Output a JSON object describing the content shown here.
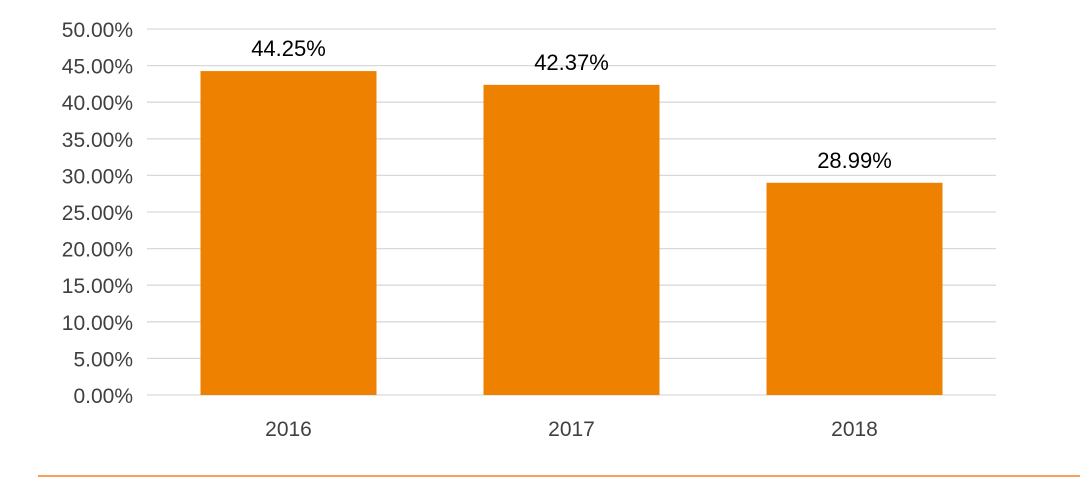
{
  "chart_data": {
    "type": "bar",
    "categories": [
      "2016",
      "2017",
      "2018"
    ],
    "values": [
      44.25,
      42.37,
      28.99
    ],
    "value_labels": [
      "44.25%",
      "42.37%",
      "28.99%"
    ],
    "y_ticks": [
      0,
      5,
      10,
      15,
      20,
      25,
      30,
      35,
      40,
      45,
      50
    ],
    "y_tick_labels": [
      "0.00%",
      "5.00%",
      "10.00%",
      "15.00%",
      "20.00%",
      "25.00%",
      "30.00%",
      "35.00%",
      "40.00%",
      "45.00%",
      "50.00%"
    ],
    "ylim": [
      0,
      50
    ],
    "title": "",
    "xlabel": "",
    "ylabel": "",
    "grid": true,
    "legend": "none"
  },
  "colors": {
    "bar": "#EE8200",
    "grid": "#D9D9D9",
    "text": "#404040",
    "label_text": "#000000",
    "footer_line": "#F5A25A"
  }
}
